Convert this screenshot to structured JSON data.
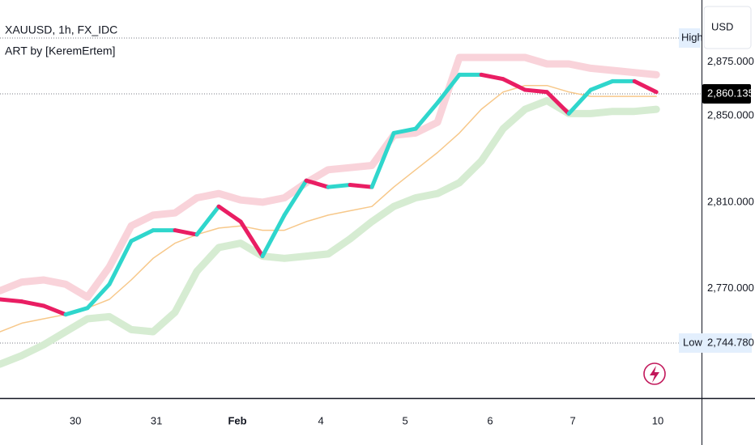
{
  "chart_data": {
    "type": "line",
    "title": "XAUUSD, 1h, FX_IDC",
    "subtitle": "ART by [KeremErtem]",
    "currency": "USD",
    "x": [
      0,
      6,
      12,
      18,
      24,
      30,
      36,
      42,
      48,
      54,
      60,
      66,
      72,
      78,
      84,
      90,
      96,
      102,
      108,
      114,
      120,
      126,
      132,
      138,
      144,
      150,
      156,
      162,
      168,
      174,
      180
    ],
    "xlim": [
      0,
      192.4
    ],
    "xticks": [
      {
        "value": 20.7,
        "label": "30"
      },
      {
        "value": 42.9,
        "label": "31"
      },
      {
        "value": 65.1,
        "label": "Feb"
      },
      {
        "value": 88,
        "label": "4"
      },
      {
        "value": 111.1,
        "label": "5"
      },
      {
        "value": 134.4,
        "label": "6"
      },
      {
        "value": 157.1,
        "label": "7"
      },
      {
        "value": 180.4,
        "label": "10"
      }
    ],
    "ylim": [
      2719.3,
      2903.6
    ],
    "yticks": [
      {
        "value": 2875,
        "label": "2,875.000"
      },
      {
        "value": 2850,
        "label": "2,850.000"
      },
      {
        "value": 2810,
        "label": "2,810.000"
      },
      {
        "value": 2770,
        "label": "2,770.000"
      }
    ],
    "grid": false,
    "series": [
      {
        "color": "#f9d3da",
        "width": 9,
        "values": [
          2769,
          2773,
          2774,
          2772,
          2766,
          2780,
          2799,
          2804,
          2805,
          2812,
          2814,
          2811,
          2810,
          2812,
          2819,
          2825,
          2826,
          2827,
          2841,
          2842,
          2847,
          2877,
          2877,
          2877,
          2877,
          2874,
          2874,
          2872,
          2871,
          2870,
          2869
        ]
      },
      {
        "color": "#d6ecd2",
        "width": 9,
        "values": [
          2735,
          2739,
          2744,
          2750,
          2756,
          2757,
          2751,
          2750,
          2759,
          2778,
          2789,
          2791,
          2785,
          2784,
          2785,
          2786,
          2793,
          2801,
          2808,
          2812,
          2814,
          2819,
          2829,
          2844,
          2853,
          2857,
          2851,
          2851,
          2852,
          2852,
          2853
        ]
      },
      {
        "color": "#f7c88a",
        "width": 1.5,
        "values": [
          2750,
          2754,
          2756,
          2758,
          2761,
          2765,
          2774,
          2784,
          2791,
          2795,
          2798,
          2799,
          2797,
          2797,
          2801,
          2804,
          2806,
          2808,
          2817,
          2825,
          2833,
          2842,
          2853,
          2861,
          2864,
          2864,
          2861,
          2859,
          2859,
          2859,
          2859
        ]
      },
      {
        "color": "#2fd6cc",
        "down_color": "#e91e63",
        "width": 5,
        "values": [
          2765,
          2764,
          2762,
          2758,
          2761,
          2772,
          2792,
          2797,
          2797,
          2795,
          2808,
          2801,
          2785,
          2804,
          2820,
          2817,
          2818,
          2817,
          2842,
          2844,
          2856,
          2869,
          2869,
          2867,
          2862,
          2861,
          2851,
          2862,
          2866,
          2866,
          2861
        ]
      }
    ],
    "high": {
      "label": "High",
      "value": 2886
    },
    "low": {
      "label": "Low",
      "value": 2744.78,
      "value_label": "2,744.780"
    },
    "last_price": {
      "value": 2860.135,
      "label": "2,860.135"
    }
  }
}
